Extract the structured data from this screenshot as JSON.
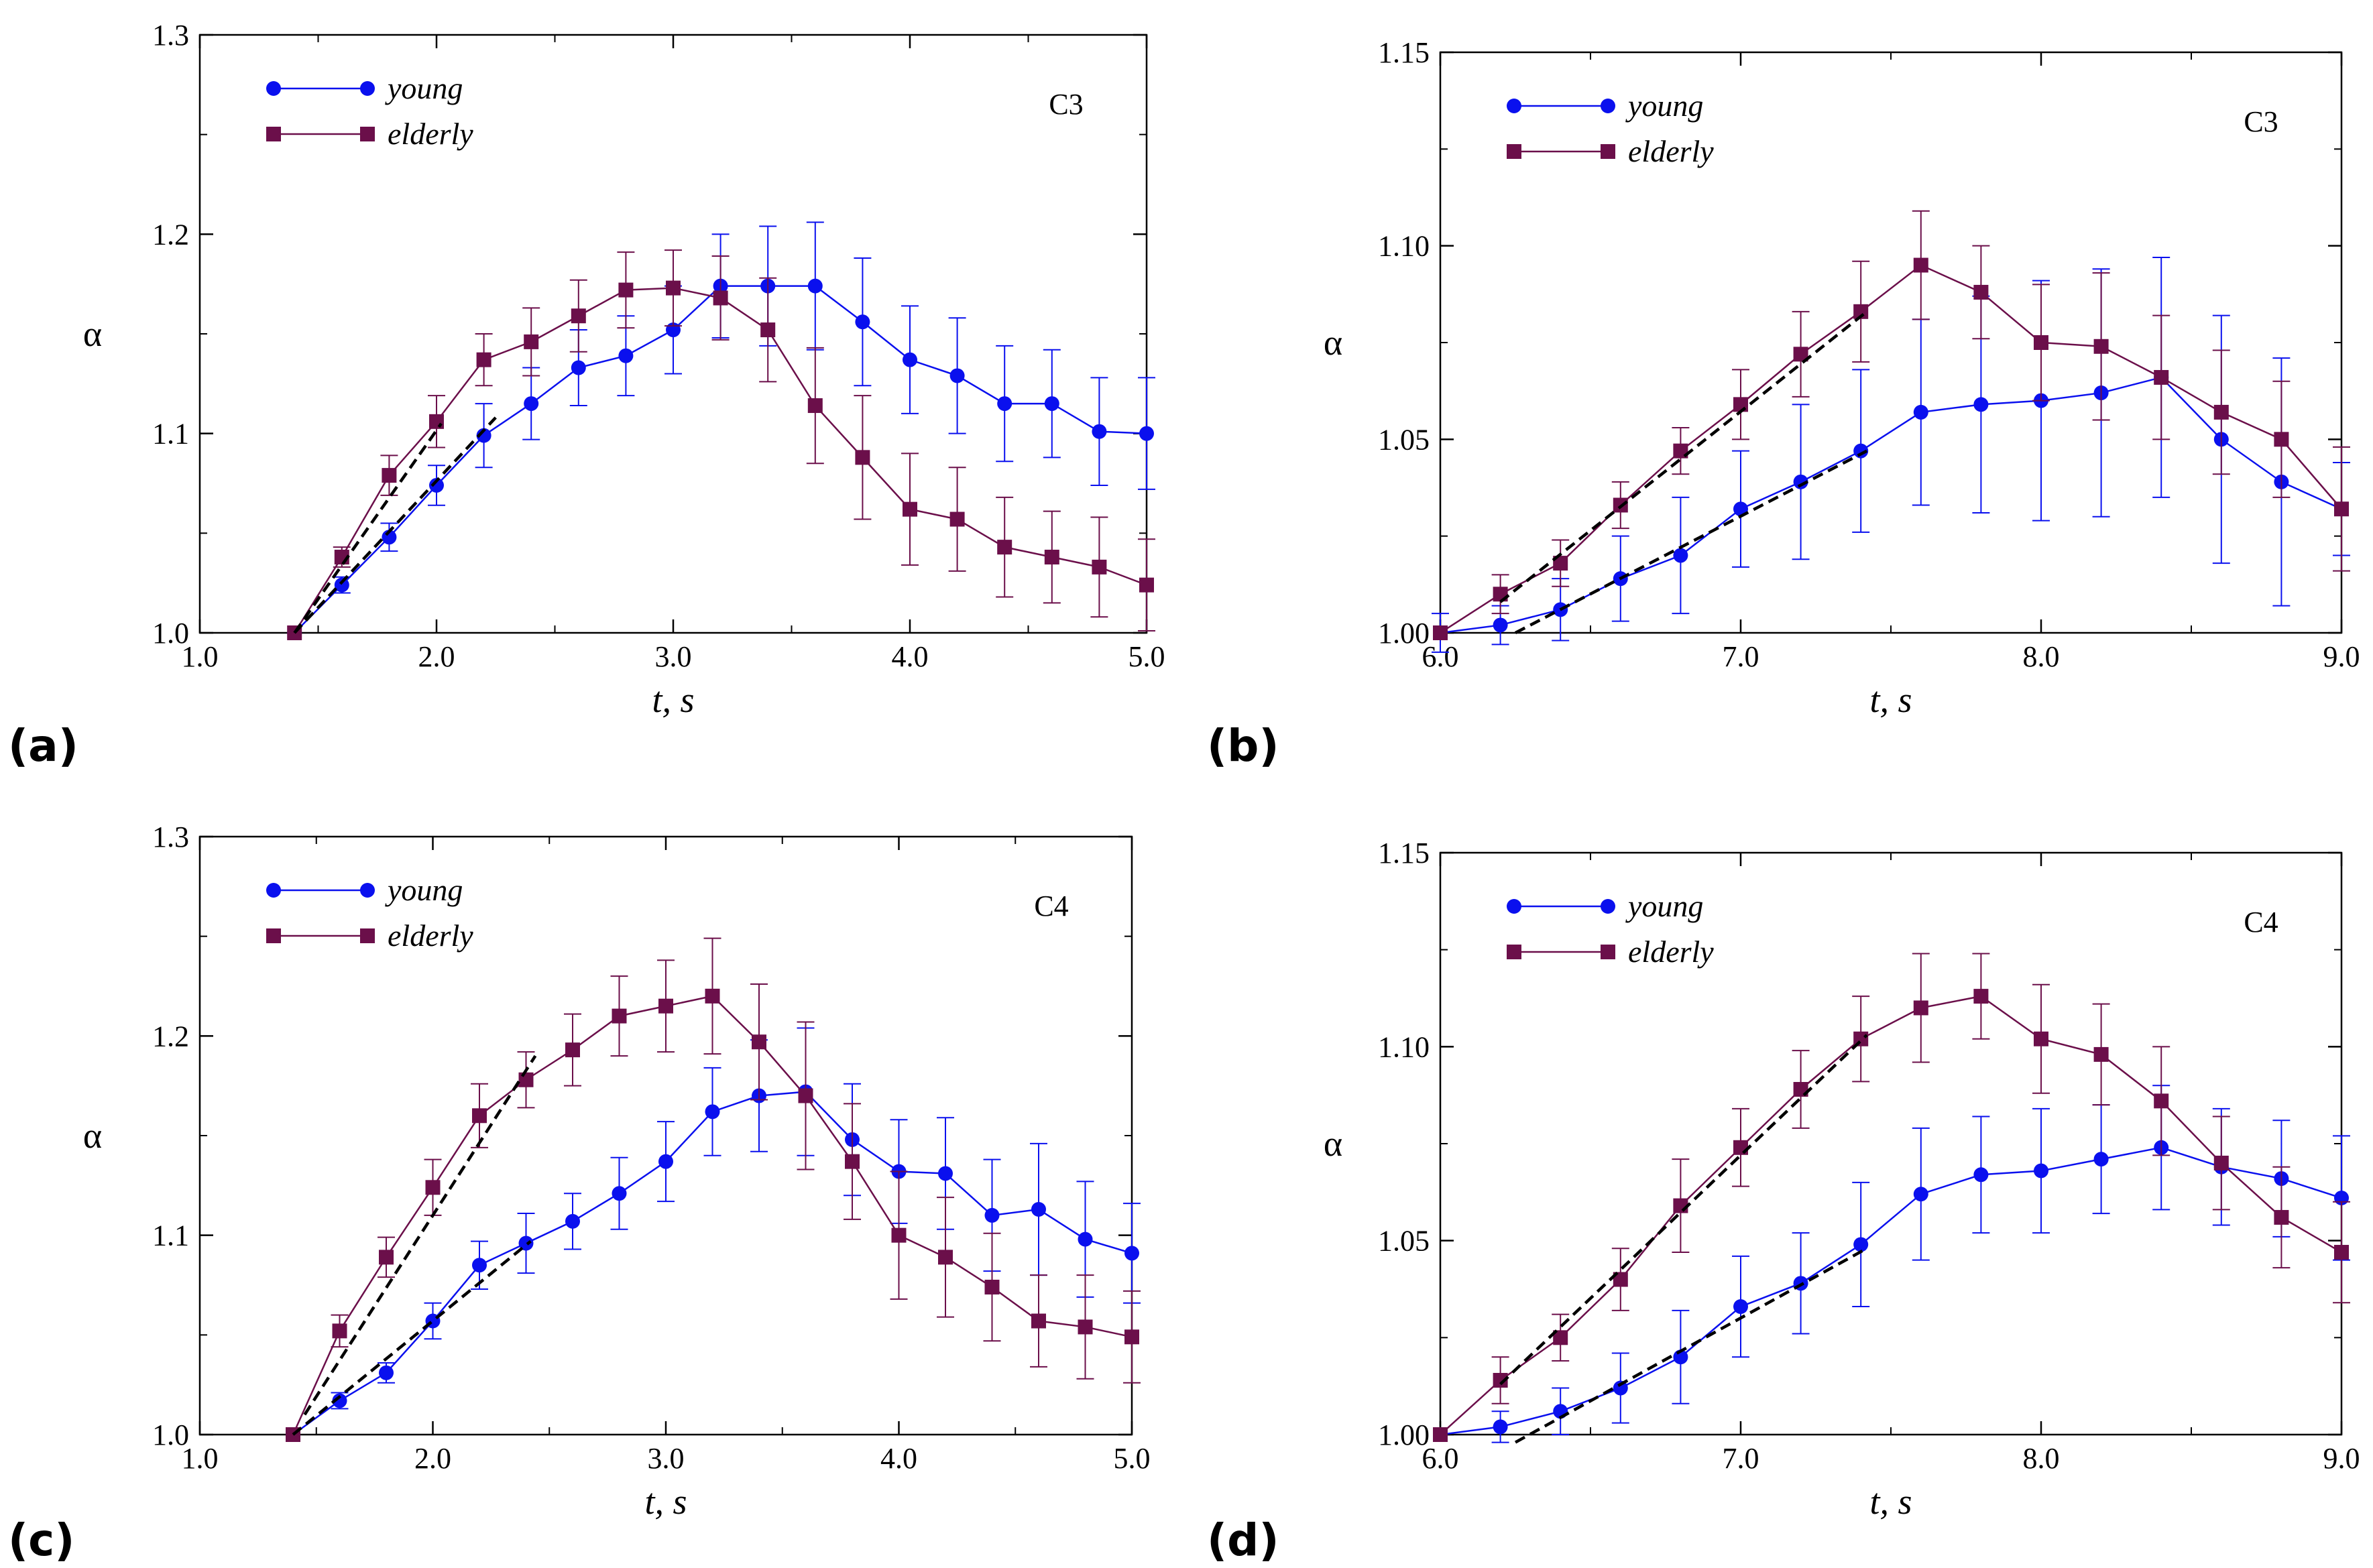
{
  "colors": {
    "young": "#0a10ee",
    "elderly": "#6b0f4a",
    "fit": "#000000",
    "axis": "#000000"
  },
  "chart_data": [
    {
      "id": "a",
      "panel_label": "(a)",
      "type": "line",
      "tag": "C3",
      "xlabel": "t, s",
      "ylabel": "α",
      "xlim": [
        1.0,
        5.0
      ],
      "ylim": [
        1.0,
        1.3
      ],
      "xticks": [
        "1.0",
        "2.0",
        "3.0",
        "4.0",
        "5.0"
      ],
      "yticks": [
        "1.0",
        "1.1",
        "1.2",
        "1.3"
      ],
      "legend_position": "top-left",
      "series": [
        {
          "name": "young",
          "marker": "circle",
          "x": [
            1.4,
            1.6,
            1.8,
            2.0,
            2.2,
            2.4,
            2.6,
            2.8,
            3.0,
            3.2,
            3.4,
            3.6,
            3.8,
            4.0,
            4.2,
            4.4,
            4.6,
            4.8,
            5.0
          ],
          "y": [
            1.0,
            1.024,
            1.048,
            1.074,
            1.099,
            1.115,
            1.133,
            1.139,
            1.152,
            1.174,
            1.174,
            1.174,
            1.156,
            1.137,
            1.129,
            1.115,
            1.115,
            1.101,
            1.1
          ],
          "err": [
            0,
            0.004,
            0.007,
            0.01,
            0.016,
            0.018,
            0.019,
            0.02,
            0.022,
            0.026,
            0.03,
            0.032,
            0.032,
            0.027,
            0.029,
            0.029,
            0.027,
            0.027,
            0.028
          ]
        },
        {
          "name": "elderly",
          "marker": "square",
          "x": [
            1.4,
            1.6,
            1.8,
            2.0,
            2.2,
            2.4,
            2.6,
            2.8,
            3.0,
            3.2,
            3.4,
            3.6,
            3.8,
            4.0,
            4.2,
            4.4,
            4.6,
            4.8,
            5.0
          ],
          "y": [
            1.0,
            1.038,
            1.079,
            1.106,
            1.137,
            1.146,
            1.159,
            1.172,
            1.173,
            1.168,
            1.152,
            1.114,
            1.088,
            1.062,
            1.057,
            1.043,
            1.038,
            1.033,
            1.024
          ],
          "err": [
            0,
            0.005,
            0.01,
            0.013,
            0.013,
            0.017,
            0.018,
            0.019,
            0.019,
            0.021,
            0.026,
            0.029,
            0.031,
            0.028,
            0.026,
            0.025,
            0.023,
            0.025,
            0.023
          ]
        }
      ],
      "fits": [
        {
          "x": [
            1.4,
            2.02
          ],
          "y": [
            1.0,
            1.105
          ]
        },
        {
          "x": [
            1.4,
            2.25
          ],
          "y": [
            1.0,
            1.108
          ]
        }
      ]
    },
    {
      "id": "b",
      "panel_label": "(b)",
      "type": "line",
      "tag": "C3",
      "xlabel": "t, s",
      "ylabel": "α",
      "xlim": [
        6.0,
        9.0
      ],
      "ylim": [
        1.0,
        1.15
      ],
      "xticks": [
        "6.0",
        "7.0",
        "8.0",
        "9.0"
      ],
      "yticks": [
        "1.00",
        "1.05",
        "1.10",
        "1.15"
      ],
      "legend_position": "top-left",
      "series": [
        {
          "name": "young",
          "marker": "circle",
          "x": [
            6.0,
            6.2,
            6.4,
            6.6,
            6.8,
            7.0,
            7.2,
            7.4,
            7.6,
            7.8,
            8.0,
            8.2,
            8.4,
            8.6,
            8.8,
            9.0
          ],
          "y": [
            1.0,
            1.002,
            1.006,
            1.014,
            1.02,
            1.032,
            1.039,
            1.047,
            1.057,
            1.059,
            1.06,
            1.062,
            1.066,
            1.05,
            1.039,
            1.032
          ],
          "err": [
            0.005,
            0.005,
            0.008,
            0.011,
            0.015,
            0.015,
            0.02,
            0.021,
            0.024,
            0.028,
            0.031,
            0.032,
            0.031,
            0.032,
            0.032,
            0.012
          ]
        },
        {
          "name": "elderly",
          "marker": "square",
          "x": [
            6.0,
            6.2,
            6.4,
            6.6,
            6.8,
            7.0,
            7.2,
            7.4,
            7.6,
            7.8,
            8.0,
            8.2,
            8.4,
            8.6,
            8.8,
            9.0
          ],
          "y": [
            1.0,
            1.01,
            1.018,
            1.033,
            1.047,
            1.059,
            1.072,
            1.083,
            1.095,
            1.088,
            1.075,
            1.074,
            1.066,
            1.057,
            1.05,
            1.032
          ],
          "err": [
            0,
            0.005,
            0.006,
            0.006,
            0.006,
            0.009,
            0.011,
            0.013,
            0.014,
            0.012,
            0.015,
            0.019,
            0.016,
            0.016,
            0.015,
            0.016
          ]
        }
      ],
      "fits": [
        {
          "x": [
            6.2,
            7.42
          ],
          "y": [
            1.008,
            1.083
          ]
        },
        {
          "x": [
            6.25,
            7.42
          ],
          "y": [
            1.0,
            1.047
          ]
        }
      ]
    },
    {
      "id": "c",
      "panel_label": "(c)",
      "type": "line",
      "tag": "C4",
      "xlabel": "t, s",
      "ylabel": "α",
      "xlim": [
        1.0,
        5.0
      ],
      "ylim": [
        1.0,
        1.3
      ],
      "xticks": [
        "1.0",
        "2.0",
        "3.0",
        "4.0",
        "5.0"
      ],
      "yticks": [
        "1.0",
        "1.1",
        "1.2",
        "1.3"
      ],
      "legend_position": "top-left",
      "series": [
        {
          "name": "young",
          "marker": "circle",
          "x": [
            1.4,
            1.6,
            1.8,
            2.0,
            2.2,
            2.4,
            2.6,
            2.8,
            3.0,
            3.2,
            3.4,
            3.6,
            3.8,
            4.0,
            4.2,
            4.4,
            4.6,
            4.8,
            5.0
          ],
          "y": [
            1.0,
            1.017,
            1.031,
            1.057,
            1.085,
            1.096,
            1.107,
            1.121,
            1.137,
            1.162,
            1.17,
            1.172,
            1.148,
            1.132,
            1.131,
            1.11,
            1.113,
            1.098,
            1.091
          ],
          "err": [
            0,
            0.004,
            0.005,
            0.009,
            0.012,
            0.015,
            0.014,
            0.018,
            0.02,
            0.022,
            0.028,
            0.032,
            0.028,
            0.026,
            0.028,
            0.028,
            0.033,
            0.029,
            0.025
          ]
        },
        {
          "name": "elderly",
          "marker": "square",
          "x": [
            1.4,
            1.6,
            1.8,
            2.0,
            2.2,
            2.4,
            2.6,
            2.8,
            3.0,
            3.2,
            3.4,
            3.6,
            3.8,
            4.0,
            4.2,
            4.4,
            4.6,
            4.8,
            5.0
          ],
          "y": [
            1.0,
            1.052,
            1.089,
            1.124,
            1.16,
            1.178,
            1.193,
            1.21,
            1.215,
            1.22,
            1.197,
            1.17,
            1.137,
            1.1,
            1.089,
            1.074,
            1.057,
            1.054,
            1.049
          ],
          "err": [
            0,
            0.008,
            0.01,
            0.014,
            0.016,
            0.014,
            0.018,
            0.02,
            0.023,
            0.029,
            0.029,
            0.037,
            0.029,
            0.032,
            0.03,
            0.027,
            0.023,
            0.026,
            0.023
          ]
        }
      ],
      "fits": [
        {
          "x": [
            1.45,
            2.44
          ],
          "y": [
            1.01,
            1.19
          ]
        },
        {
          "x": [
            1.4,
            2.42
          ],
          "y": [
            1.0,
            1.097
          ]
        }
      ]
    },
    {
      "id": "d",
      "panel_label": "(d)",
      "type": "line",
      "tag": "C4",
      "xlabel": "t, s",
      "ylabel": "α",
      "xlim": [
        6.0,
        9.0
      ],
      "ylim": [
        1.0,
        1.15
      ],
      "xticks": [
        "6.0",
        "7.0",
        "8.0",
        "9.0"
      ],
      "yticks": [
        "1.00",
        "1.05",
        "1.10",
        "1.15"
      ],
      "legend_position": "top-left",
      "series": [
        {
          "name": "young",
          "marker": "circle",
          "x": [
            6.0,
            6.2,
            6.4,
            6.6,
            6.8,
            7.0,
            7.2,
            7.4,
            7.6,
            7.8,
            8.0,
            8.2,
            8.4,
            8.6,
            8.8,
            9.0
          ],
          "y": [
            1.0,
            1.002,
            1.006,
            1.012,
            1.02,
            1.033,
            1.039,
            1.049,
            1.062,
            1.067,
            1.068,
            1.071,
            1.074,
            1.069,
            1.066,
            1.061
          ],
          "err": [
            0,
            0.004,
            0.006,
            0.009,
            0.012,
            0.013,
            0.013,
            0.016,
            0.017,
            0.015,
            0.016,
            0.014,
            0.016,
            0.015,
            0.015,
            0.016
          ]
        },
        {
          "name": "elderly",
          "marker": "square",
          "x": [
            6.0,
            6.2,
            6.4,
            6.6,
            6.8,
            7.0,
            7.2,
            7.4,
            7.6,
            7.8,
            8.0,
            8.2,
            8.4,
            8.6,
            8.8,
            9.0
          ],
          "y": [
            1.0,
            1.014,
            1.025,
            1.04,
            1.059,
            1.074,
            1.089,
            1.102,
            1.11,
            1.113,
            1.102,
            1.098,
            1.086,
            1.07,
            1.056,
            1.047
          ],
          "err": [
            0,
            0.006,
            0.006,
            0.008,
            0.012,
            0.01,
            0.01,
            0.011,
            0.014,
            0.011,
            0.014,
            0.013,
            0.014,
            0.012,
            0.013,
            0.013
          ]
        }
      ],
      "fits": [
        {
          "x": [
            6.2,
            7.42
          ],
          "y": [
            1.013,
            1.103
          ]
        },
        {
          "x": [
            6.25,
            7.42
          ],
          "y": [
            0.998,
            1.048
          ]
        }
      ]
    }
  ]
}
